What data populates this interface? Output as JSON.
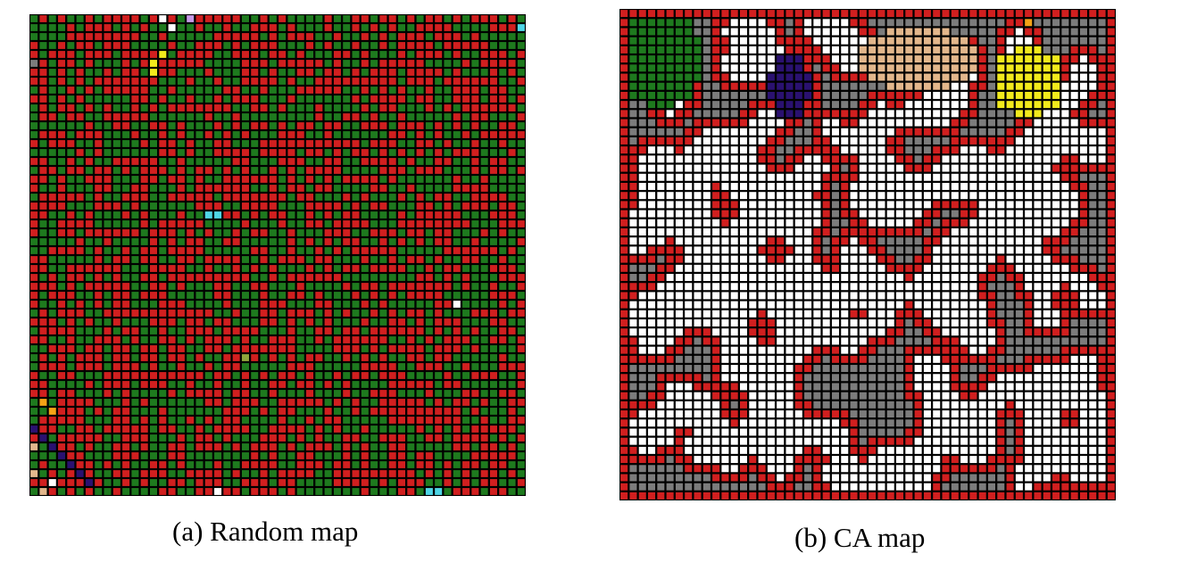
{
  "figure": {
    "maps": [
      {
        "id": "random",
        "caption": "(a) Random map",
        "grid": {
          "cols": 54,
          "rows": 54
        },
        "palette": {
          "green": "#1e7a1e",
          "red": "#d11f1f",
          "gray": "#7c7c7c",
          "white": "#ffffff",
          "yellow": "#f2ea1c",
          "navy": "#2a1170",
          "tan": "#e3b78c",
          "orange": "#f5a316",
          "cyan": "#4fd6e6",
          "violet": "#c79be8",
          "olive": "#8fa63c"
        }
      },
      {
        "id": "ca",
        "caption": "(b) CA map",
        "grid": {
          "cols": 54,
          "rows": 54
        },
        "palette": {
          "gray": "#7c7c7c",
          "white": "#ffffff",
          "red": "#d11f1f",
          "green": "#1e7a1e",
          "navy": "#2a1170",
          "tan": "#e3b78c",
          "yellow": "#f2ea1c",
          "orange": "#f5a316"
        }
      }
    ]
  }
}
